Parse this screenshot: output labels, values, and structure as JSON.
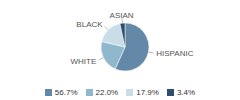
{
  "chart_data": {
    "type": "pie",
    "categories": [
      "HISPANIC",
      "WHITE",
      "BLACK",
      "ASIAN"
    ],
    "values": [
      56.7,
      22.0,
      17.9,
      3.4
    ],
    "value_labels": [
      "56.7%",
      "22.0%",
      "17.9%",
      "3.4%"
    ],
    "colors": [
      "#6388a8",
      "#90b8cc",
      "#c8dde8",
      "#2d4f6e"
    ],
    "legend": "bottom"
  }
}
